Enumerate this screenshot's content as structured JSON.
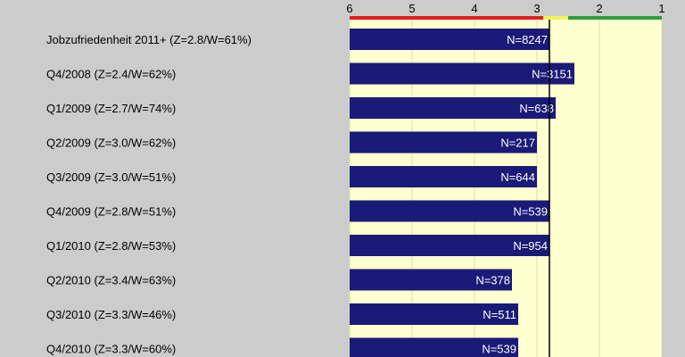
{
  "colors": {
    "page_bg": "#cccccc",
    "plot_bg": "#ffffd0",
    "bar": "#1a1a78",
    "bar_label": "#ffffff",
    "axis_text": "#000000",
    "scale_red": "#e02020",
    "scale_yellow": "#f2f25a",
    "scale_green": "#2e9e3c"
  },
  "chart_data": {
    "type": "bar",
    "orientation": "horizontal",
    "x_axis": {
      "min": 1,
      "max": 6,
      "reversed": true,
      "ticks": [
        6,
        5,
        4,
        3,
        2,
        1
      ],
      "tick_labels": [
        "6",
        "5",
        "4",
        "3",
        "2",
        "1"
      ],
      "position": "top"
    },
    "reference_value": 2.8,
    "scale_bands": [
      {
        "from": 6,
        "to": 2.9,
        "color": "red"
      },
      {
        "from": 2.9,
        "to": 2.5,
        "color": "yellow"
      },
      {
        "from": 2.5,
        "to": 1,
        "color": "green"
      }
    ],
    "grid": true,
    "categories": [
      "Jobzufriedenheit 2011+ (Z=2.8/W=61%)",
      "Q4/2008 (Z=2.4/W=62%)",
      "Q1/2009 (Z=2.7/W=74%)",
      "Q2/2009 (Z=3.0/W=62%)",
      "Q3/2009 (Z=3.0/W=51%)",
      "Q4/2009 (Z=2.8/W=51%)",
      "Q1/2010 (Z=2.8/W=53%)",
      "Q2/2010 (Z=3.4/W=63%)",
      "Q3/2010 (Z=3.3/W=46%)",
      "Q4/2010 (Z=3.3/W=60%)"
    ],
    "values": [
      2.8,
      2.4,
      2.7,
      3.0,
      3.0,
      2.8,
      2.8,
      3.4,
      3.3,
      3.3
    ],
    "bar_labels": [
      "N=8247",
      "N=3151",
      "N=638",
      "N=217",
      "N=644",
      "N=539",
      "N=954",
      "N=378",
      "N=511",
      "N=539"
    ]
  }
}
